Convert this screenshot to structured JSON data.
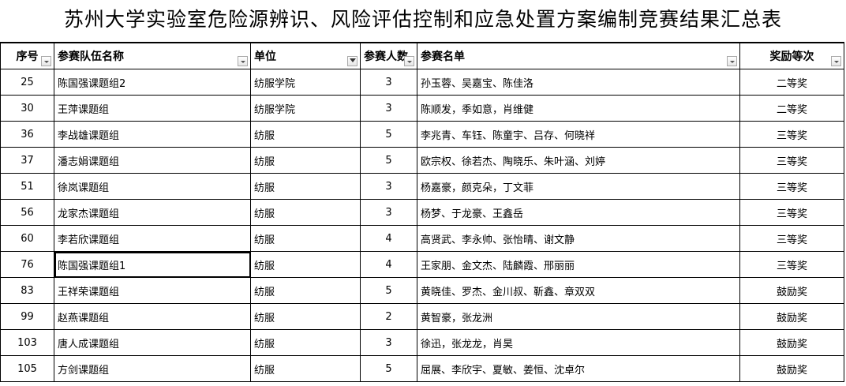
{
  "title": "苏州大学实验室危险源辨识、风险评估控制和应急处置方案编制竞赛结果汇总表",
  "headers": [
    "序号",
    "参赛队伍名称",
    "单位",
    "参赛人数",
    "参赛名单",
    "奖励等次"
  ],
  "filters": {
    "active_column": "单位"
  },
  "selected_cell": {
    "row": "76",
    "column": "参赛队伍名称"
  },
  "rows": [
    [
      "25",
      "陈国强课题组2",
      "纺服学院",
      "3",
      "孙玉蓉、吴嘉宝、陈佳洛",
      "二等奖"
    ],
    [
      "30",
      "王萍课题组",
      "纺服学院",
      "3",
      "陈顺发，季如意，肖维健",
      "二等奖"
    ],
    [
      "36",
      "李战雄课题组",
      "纺服",
      "5",
      "李兆青、车钰、陈童宇、吕存、何晓祥",
      "三等奖"
    ],
    [
      "37",
      "潘志娟课题组",
      "纺服",
      "5",
      "欧宗权、徐若杰、陶晓乐、朱叶涵、刘婷",
      "三等奖"
    ],
    [
      "51",
      "徐岚课题组",
      "纺服",
      "3",
      "杨嘉豪，颜克朵，丁文菲",
      "三等奖"
    ],
    [
      "56",
      "龙家杰课题组",
      "纺服",
      "3",
      "杨梦、于龙豪、王鑫岳",
      "三等奖"
    ],
    [
      "60",
      "李若欣课题组",
      "纺服",
      "4",
      "高贤武、李永帅、张怡晴、谢文静",
      "三等奖"
    ],
    [
      "76",
      "陈国强课题组1",
      "纺服",
      "4",
      "王家朋、金文杰、陆麟霞、邢丽丽",
      "三等奖"
    ],
    [
      "83",
      "王祥荣课题组",
      "纺服",
      "5",
      "黄晓佳、罗杰、金川叔、靳鑫、章双双",
      "鼓励奖"
    ],
    [
      "99",
      "赵燕课题组",
      "纺服",
      "2",
      "黄智豪，张龙洲",
      "鼓励奖"
    ],
    [
      "103",
      "唐人成课题组",
      "纺服",
      "3",
      "徐迅，张龙龙，肖昊",
      "鼓励奖"
    ],
    [
      "105",
      "方剑课题组",
      "纺服",
      "5",
      "屈展、李欣宇、夏敏、姜恒、沈卓尔",
      "鼓励奖"
    ]
  ]
}
